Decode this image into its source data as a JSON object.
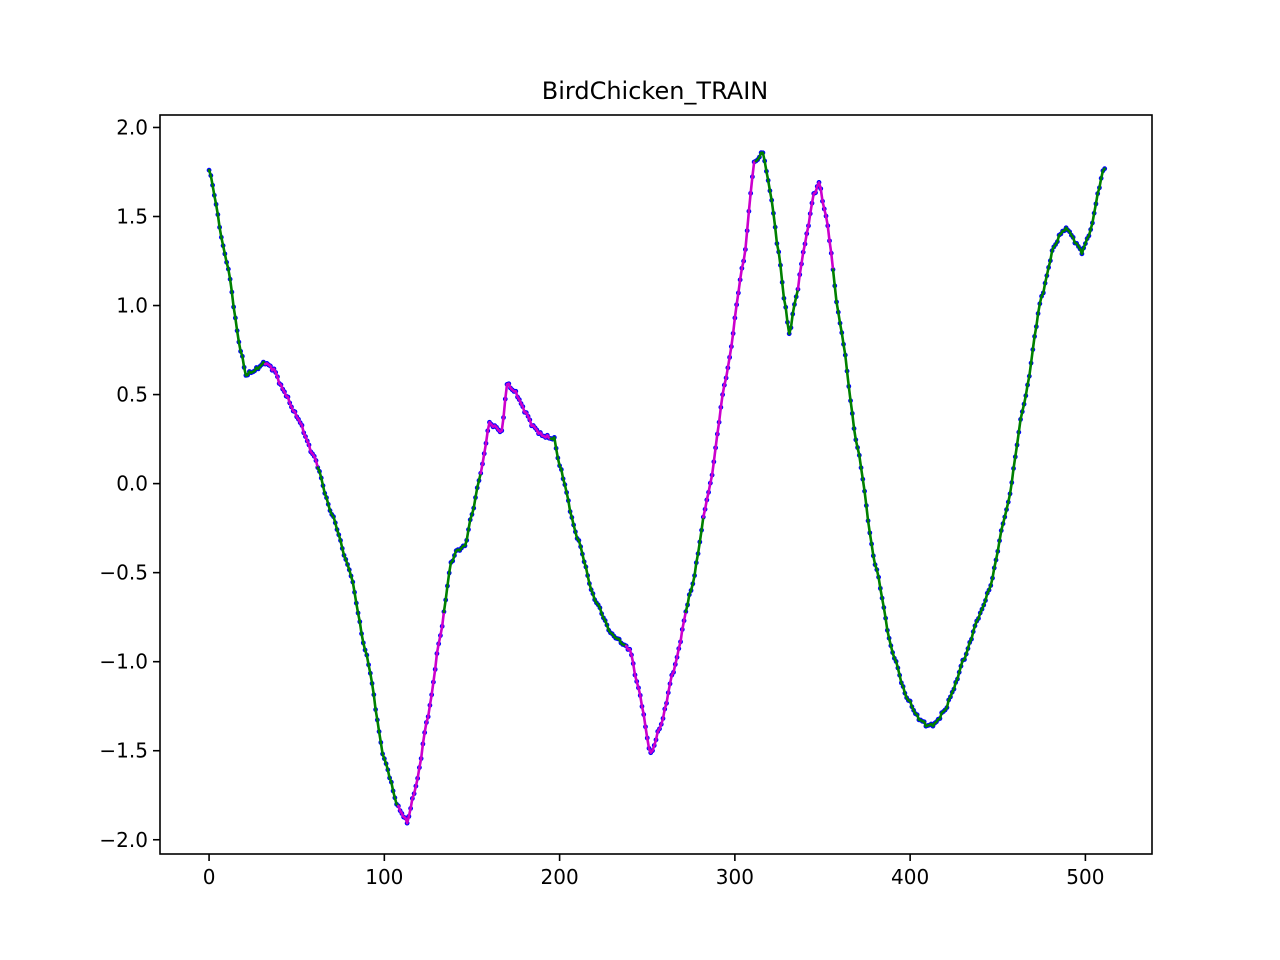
{
  "chart_data": {
    "type": "line",
    "title": "BirdChicken_TRAIN",
    "xlabel": "",
    "ylabel": "",
    "xlim": [
      -28,
      538
    ],
    "ylim": [
      -2.08,
      2.07
    ],
    "xticks": [
      0,
      100,
      200,
      300,
      400,
      500
    ],
    "yticks": [
      2.0,
      1.5,
      1.0,
      0.5,
      0.0,
      -0.5,
      -1.0,
      -1.5,
      -2.0
    ],
    "xtick_labels": [
      "0",
      "100",
      "200",
      "300",
      "400",
      "500"
    ],
    "ytick_labels": [
      "2.0",
      "1.5",
      "1.0",
      "0.5",
      "0.0",
      "−0.5",
      "−1.0",
      "−1.5",
      "−2.0"
    ],
    "grid": false,
    "legend": "none",
    "colors": {
      "points": "#0000ff",
      "line": "#008000",
      "highlight": "#cc00cc"
    },
    "keypoints": [
      [
        0,
        1.76
      ],
      [
        10,
        1.25
      ],
      [
        18,
        0.75
      ],
      [
        21,
        0.61
      ],
      [
        25,
        0.63
      ],
      [
        32,
        0.68
      ],
      [
        37,
        0.64
      ],
      [
        42,
        0.53
      ],
      [
        50,
        0.38
      ],
      [
        60,
        0.15
      ],
      [
        70,
        -0.17
      ],
      [
        80,
        -0.48
      ],
      [
        90,
        -0.97
      ],
      [
        100,
        -1.55
      ],
      [
        108,
        -1.82
      ],
      [
        113,
        -1.9
      ],
      [
        118,
        -1.7
      ],
      [
        125,
        -1.3
      ],
      [
        132,
        -0.85
      ],
      [
        138,
        -0.45
      ],
      [
        141,
        -0.38
      ],
      [
        146,
        -0.35
      ],
      [
        150,
        -0.17
      ],
      [
        155,
        0.06
      ],
      [
        160,
        0.34
      ],
      [
        163,
        0.32
      ],
      [
        167,
        0.29
      ],
      [
        170,
        0.56
      ],
      [
        175,
        0.51
      ],
      [
        180,
        0.41
      ],
      [
        185,
        0.32
      ],
      [
        190,
        0.27
      ],
      [
        197,
        0.25
      ],
      [
        200,
        0.1
      ],
      [
        210,
        -0.3
      ],
      [
        220,
        -0.65
      ],
      [
        230,
        -0.85
      ],
      [
        240,
        -0.93
      ],
      [
        245,
        -1.15
      ],
      [
        252,
        -1.52
      ],
      [
        258,
        -1.35
      ],
      [
        265,
        -1.05
      ],
      [
        275,
        -0.6
      ],
      [
        285,
        -0.05
      ],
      [
        295,
        0.6
      ],
      [
        305,
        1.25
      ],
      [
        311,
        1.8
      ],
      [
        316,
        1.86
      ],
      [
        320,
        1.65
      ],
      [
        325,
        1.3
      ],
      [
        328,
        1.05
      ],
      [
        331,
        0.84
      ],
      [
        335,
        1.05
      ],
      [
        340,
        1.35
      ],
      [
        345,
        1.62
      ],
      [
        348,
        1.69
      ],
      [
        352,
        1.5
      ],
      [
        360,
        0.9
      ],
      [
        370,
        0.2
      ],
      [
        380,
        -0.45
      ],
      [
        390,
        -0.95
      ],
      [
        398,
        -1.2
      ],
      [
        405,
        -1.32
      ],
      [
        410,
        -1.36
      ],
      [
        414,
        -1.35
      ],
      [
        420,
        -1.27
      ],
      [
        425,
        -1.15
      ],
      [
        430,
        -1.0
      ],
      [
        440,
        -0.73
      ],
      [
        445,
        -0.6
      ],
      [
        455,
        -0.15
      ],
      [
        465,
        0.45
      ],
      [
        475,
        1.05
      ],
      [
        482,
        1.33
      ],
      [
        487,
        1.42
      ],
      [
        490,
        1.43
      ],
      [
        494,
        1.36
      ],
      [
        498,
        1.3
      ],
      [
        503,
        1.42
      ],
      [
        507,
        1.62
      ],
      [
        510,
        1.76
      ]
    ],
    "n_points": 512,
    "highlight_segments": [
      [
        32,
        62
      ],
      [
        108,
        134
      ],
      [
        155,
        195
      ],
      [
        238,
        272
      ],
      [
        282,
        312
      ],
      [
        336,
        356
      ]
    ]
  }
}
